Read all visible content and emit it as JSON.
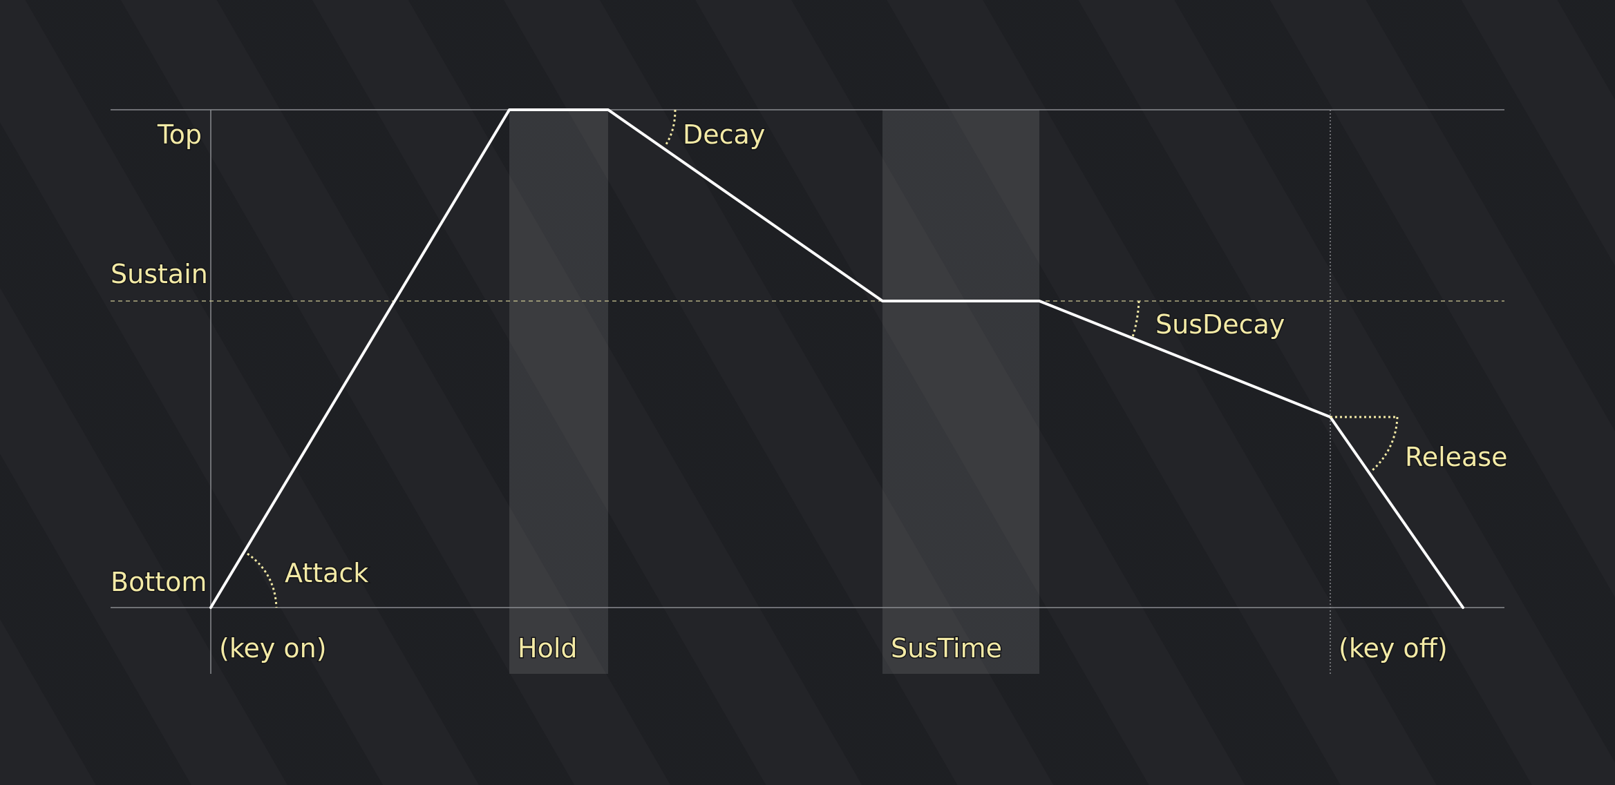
{
  "colors": {
    "background": "#1f2024",
    "envelope_line": "#ffffff",
    "frame_line": "#8a8b90",
    "label_text": "#f3eaa6",
    "dotted_guide": "#f3eaa6",
    "shaded_band": "#ffffff"
  },
  "levels": {
    "top": "Top",
    "sustain": "Sustain",
    "bottom": "Bottom"
  },
  "parameters": {
    "attack": "Attack",
    "decay": "Decay",
    "sus_decay": "SusDecay",
    "release": "Release"
  },
  "timeline": {
    "key_on": "(key on)",
    "hold": "Hold",
    "sus_time": "SusTime",
    "key_off": "(key off)"
  }
}
